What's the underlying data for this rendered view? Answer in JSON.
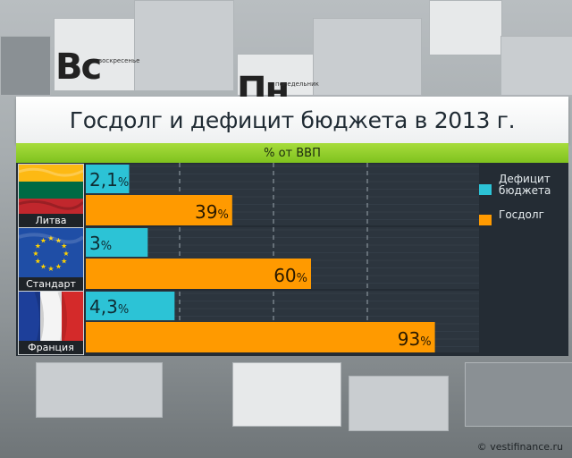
{
  "title": "Госдолг и дефицит бюджета в 2013 г.",
  "unit_label": "% от ВВП",
  "background_calendar": {
    "day1_abbr": "Вс",
    "day1_full": "воскресенье",
    "day2_abbr": "Пн",
    "day2_full": "понедельник"
  },
  "colors": {
    "deficit": "#2cc3d6",
    "debt": "#ff9a00",
    "panel_bg": "#242c34",
    "accent_green": "#8acb26"
  },
  "legend": [
    {
      "label_line1": "Дефицит",
      "label_line2": "бюджета",
      "color": "#2cc3d6"
    },
    {
      "label_line1": "Госдолг",
      "label_line2": "",
      "color": "#ff9a00"
    }
  ],
  "rows": [
    {
      "country": "Литва",
      "flag": "lithuania-flag",
      "deficit_label": "2,1",
      "debt_label": "39"
    },
    {
      "country": "Стандарт",
      "flag": "eu-flag",
      "deficit_label": "3",
      "debt_label": "60"
    },
    {
      "country": "Франция",
      "flag": "france-flag",
      "deficit_label": "4,3",
      "debt_label": "93"
    }
  ],
  "percent_sign": "%",
  "credit": "© vestifinance.ru",
  "chart_data": {
    "type": "bar",
    "orientation": "horizontal",
    "title": "Госдолг и дефицит бюджета в 2013 г.",
    "subtitle": "% от ВВП",
    "categories": [
      "Литва",
      "Стандарт",
      "Франция"
    ],
    "series": [
      {
        "name": "Дефицит бюджета",
        "values": [
          2.1,
          3,
          4.3
        ]
      },
      {
        "name": "Госдолг",
        "values": [
          39,
          60,
          93
        ]
      }
    ],
    "legend_position": "right",
    "grid": true
  }
}
